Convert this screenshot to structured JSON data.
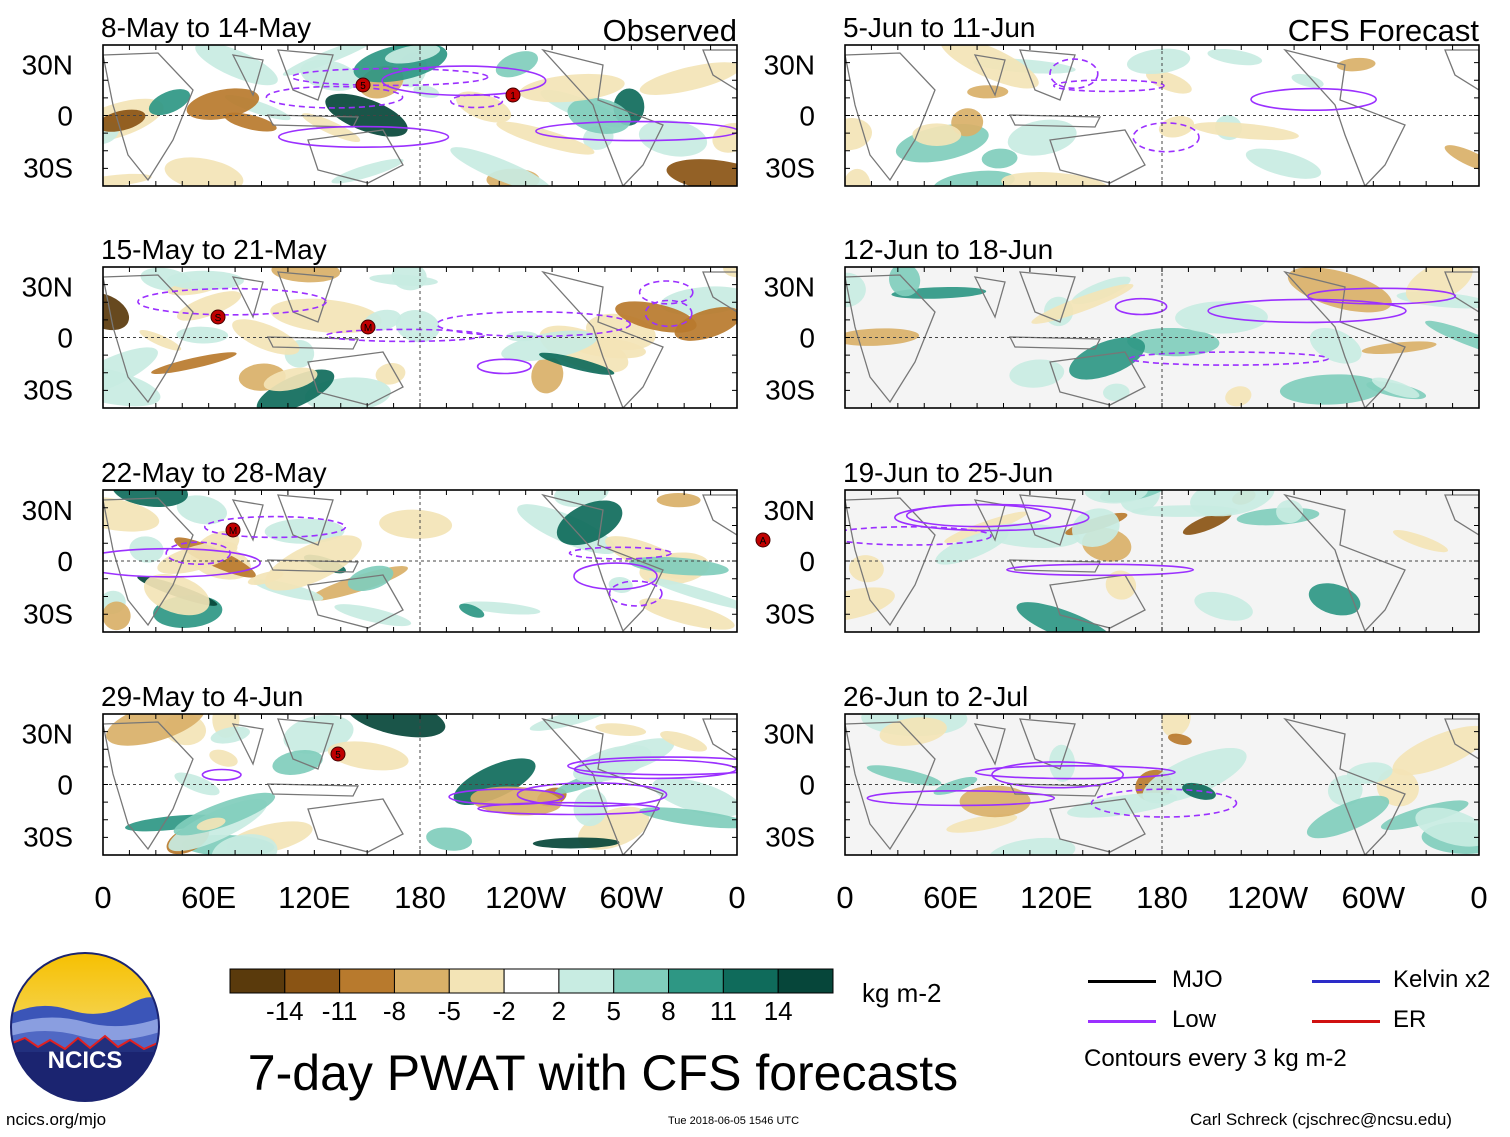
{
  "chart_data": {
    "type": "heatmap",
    "title": "7-day PWAT with CFS forecasts",
    "units": "kg m-2",
    "columns": [
      {
        "label": "Observed",
        "panels": [
          "8-May to 14-May",
          "15-May to 21-May",
          "22-May to 28-May",
          "29-May to 4-Jun"
        ]
      },
      {
        "label": "CFS Forecast",
        "panels": [
          "5-Jun to 11-Jun",
          "12-Jun to 18-Jun",
          "19-Jun to 25-Jun",
          "26-Jun to 2-Jul"
        ]
      }
    ],
    "x_ticks": [
      "0",
      "60E",
      "120E",
      "180",
      "120W",
      "60W",
      "0"
    ],
    "y_ticks": [
      "30N",
      "0",
      "30S"
    ],
    "colorbar_levels": [
      "-14",
      "-11",
      "-8",
      "-5",
      "-2",
      "2",
      "5",
      "8",
      "11",
      "14"
    ],
    "colorbar_colors": [
      "#5a3a0c",
      "#8a5414",
      "#b87a2d",
      "#d9b068",
      "#f3e4b6",
      "#ffffff",
      "#c8ece2",
      "#80cdbc",
      "#2e9784",
      "#0f6b5b",
      "#06463a"
    ],
    "contour_legend": [
      {
        "label": "MJO",
        "color": "#000000"
      },
      {
        "label": "Kelvin x2",
        "color": "#2c2cc8"
      },
      {
        "label": "Low",
        "color": "#9b30ff"
      },
      {
        "label": "ER",
        "color": "#d01010"
      }
    ],
    "contour_note": "Contours every 3 kg m-2",
    "storm_markers": [
      {
        "panel": 0,
        "labels": [
          "5",
          "1"
        ]
      },
      {
        "panel": 1,
        "labels": [
          "S",
          "M"
        ]
      },
      {
        "panel": 2,
        "labels": [
          "M",
          "A"
        ]
      },
      {
        "panel": 3,
        "labels": [
          "5"
        ]
      }
    ]
  },
  "footer": {
    "logo_text": "NCICS",
    "website": "ncics.org/mjo",
    "timestamp": "Tue 2018-06-05 1546 UTC",
    "author": "Carl Schreck (cjschrec@ncsu.edu)"
  }
}
